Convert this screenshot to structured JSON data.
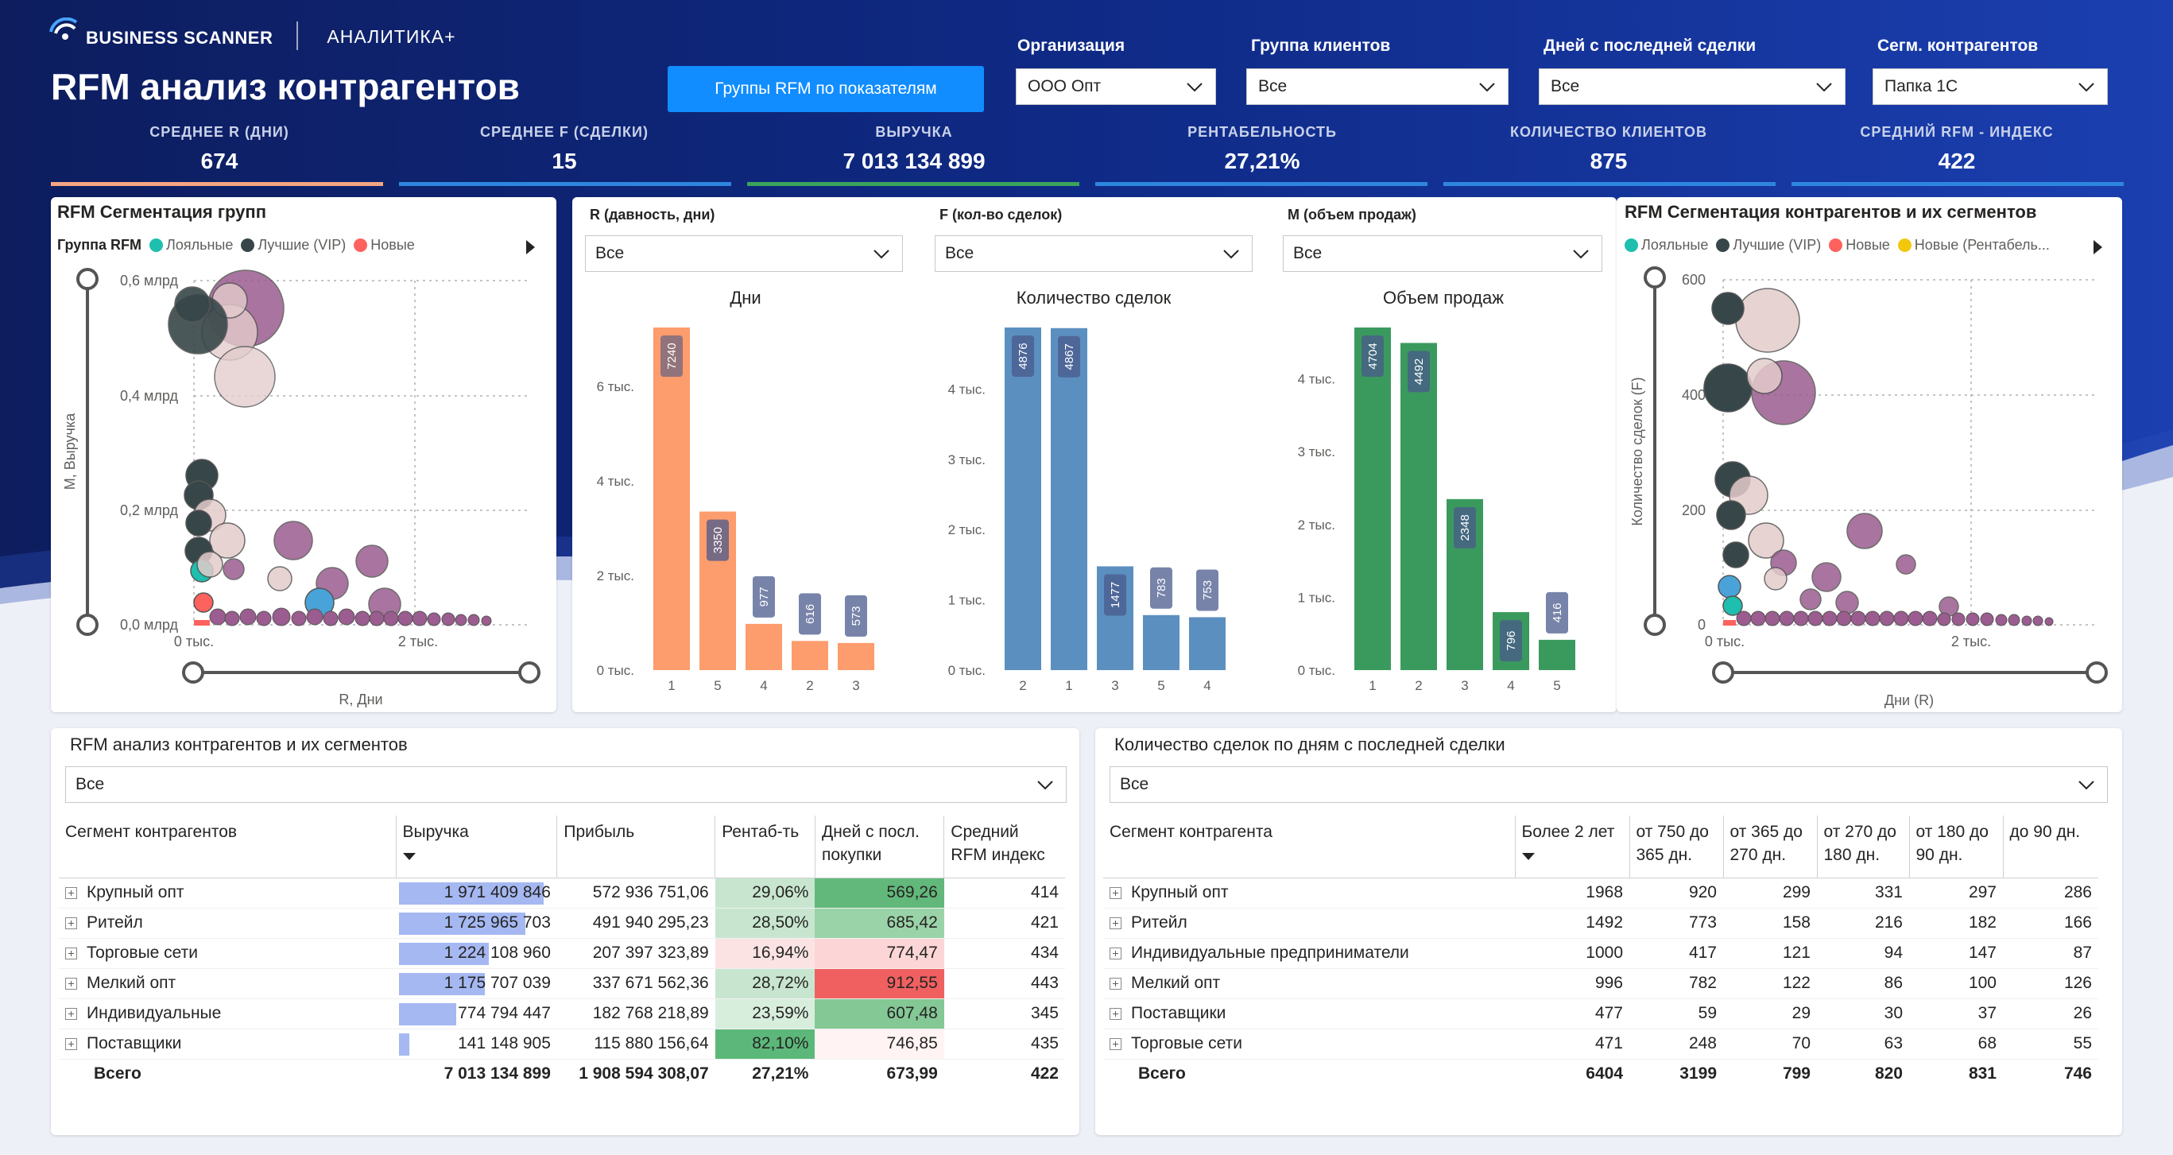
{
  "header": {
    "brand": "BUSINESS SCANNER",
    "product": "АНАЛИТИКА+",
    "title": "RFM анализ контрагентов",
    "button": "Группы RFM по показателям"
  },
  "filters": [
    {
      "label": "Организация",
      "value": "ООО Опт"
    },
    {
      "label": "Группа клиентов",
      "value": "Все"
    },
    {
      "label": "Дней с последней сделки",
      "value": "Все"
    },
    {
      "label": "Сегм. контрагентов",
      "value": "Папка 1С"
    }
  ],
  "kpis": [
    {
      "label": "СРЕДНЕЕ R (ДНИ)",
      "value": "674",
      "color": "#f4a582"
    },
    {
      "label": "СРЕДНЕЕ F (СДЕЛКИ)",
      "value": "15",
      "color": "#2e86de"
    },
    {
      "label": "ВЫРУЧКА",
      "value": "7 013 134 899",
      "color": "#3aa35c"
    },
    {
      "label": "РЕНТАБЕЛЬНОСТЬ",
      "value": "27,21%",
      "color": "#2e86de"
    },
    {
      "label": "КОЛИЧЕСТВО КЛИЕНТОВ",
      "value": "875",
      "color": "#2e86de"
    },
    {
      "label": "СРЕДНИЙ RFM - ИНДЕКС",
      "value": "422",
      "color": "#2e86de"
    }
  ],
  "scatter_left": {
    "title": "RFM Сегментация групп",
    "legend_title": "Группа RFM",
    "legend": [
      {
        "name": "Лояльные",
        "color": "#1ebfae"
      },
      {
        "name": "Лучшие (VIP)",
        "color": "#374649"
      },
      {
        "name": "Новые",
        "color": "#fd625e"
      }
    ],
    "y_title": "M, Выручка",
    "x_title": "R, Дни",
    "y_ticks": [
      "0,6 млрд",
      "0,4 млрд",
      "0,2 млрд",
      "0,0 млрд"
    ],
    "x_ticks": [
      "0 тыс.",
      "2 тыс."
    ]
  },
  "bar_panel": {
    "filters": [
      {
        "label": "R (давность, дни)",
        "value": "Все"
      },
      {
        "label": "F (кол-во сделок)",
        "value": "Все"
      },
      {
        "label": "M (объем продаж)",
        "value": "Все"
      }
    ]
  },
  "chart_data": [
    {
      "type": "bar",
      "title": "Дни",
      "categories": [
        "1",
        "5",
        "4",
        "2",
        "3"
      ],
      "values": [
        7240,
        3350,
        977,
        616,
        573
      ],
      "ylim": [
        0,
        7240
      ],
      "y_ticks": [
        "0 тыс.",
        "2 тыс.",
        "4 тыс.",
        "6 тыс."
      ],
      "color": "#fd9c6c"
    },
    {
      "type": "bar",
      "title": "Количество сделок",
      "categories": [
        "2",
        "1",
        "3",
        "5",
        "4"
      ],
      "values": [
        4876,
        4867,
        1477,
        783,
        753
      ],
      "ylim": [
        0,
        4876
      ],
      "y_ticks": [
        "0 тыс.",
        "1 тыс.",
        "2 тыс.",
        "3 тыс.",
        "4 тыс."
      ],
      "color": "#5b8fc0"
    },
    {
      "type": "bar",
      "title": "Объем продаж",
      "categories": [
        "1",
        "2",
        "3",
        "4",
        "5"
      ],
      "values": [
        4704,
        4492,
        2348,
        796,
        416
      ],
      "ylim": [
        0,
        4704
      ],
      "y_ticks": [
        "0 тыс.",
        "1 тыс.",
        "2 тыс.",
        "3 тыс.",
        "4 тыс."
      ],
      "color": "#3a9a5e"
    }
  ],
  "scatter_right": {
    "title": "RFM Сегментация контрагентов и их сегментов",
    "legend": [
      {
        "name": "Лояльные",
        "color": "#1ebfae"
      },
      {
        "name": "Лучшие (VIP)",
        "color": "#374649"
      },
      {
        "name": "Новые",
        "color": "#fd625e"
      },
      {
        "name": "Новые (Рентабель...",
        "color": "#f2c80f"
      }
    ],
    "y_title": "Количество сделок (F)",
    "x_title": "Дни (R)",
    "y_ticks": [
      "600",
      "400",
      "200",
      "0"
    ],
    "x_ticks": [
      "0 тыс.",
      "2 тыс."
    ]
  },
  "table_left": {
    "title": "RFM анализ контрагентов и их сегментов",
    "filter": "Все",
    "headers": [
      "Сегмент контрагентов",
      "Выручка",
      "Прибыль",
      "Рентаб-ть",
      "Дней с посл. покупки",
      "Средний RFM индекс"
    ],
    "rows": [
      {
        "name": "Крупный опт",
        "revenue": "1 971 409 846",
        "profit": "572 936 751,06",
        "rent": "29,06%",
        "days": "569,26",
        "rfm": "414"
      },
      {
        "name": "Ритейл",
        "revenue": "1 725 965 703",
        "profit": "491 940 295,23",
        "rent": "28,50%",
        "days": "685,42",
        "rfm": "421"
      },
      {
        "name": "Торговые сети",
        "revenue": "1 224 108 960",
        "profit": "207 397 323,89",
        "rent": "16,94%",
        "days": "774,47",
        "rfm": "434"
      },
      {
        "name": "Мелкий опт",
        "revenue": "1 175 707 039",
        "profit": "337 671 562,36",
        "rent": "28,72%",
        "days": "912,55",
        "rfm": "443"
      },
      {
        "name": "Индивидуальные",
        "revenue": "774 794 447",
        "profit": "182 768 218,89",
        "rent": "23,59%",
        "days": "607,48",
        "rfm": "345"
      },
      {
        "name": "Поставщики",
        "revenue": "141 148 905",
        "profit": "115 880 156,64",
        "rent": "82,10%",
        "days": "746,85",
        "rfm": "435"
      }
    ],
    "revenue_share": [
      1.0,
      0.875,
      0.621,
      0.596,
      0.393,
      0.072
    ],
    "total": {
      "name": "Всего",
      "revenue": "7 013 134 899",
      "profit": "1 908 594 308,07",
      "rent": "27,21%",
      "days": "673,99",
      "rfm": "422"
    }
  },
  "table_right": {
    "title": "Количество сделок по дням с последней сделки",
    "filter": "Все",
    "headers": [
      "Сегмент контрагента",
      "Более 2 лет",
      "от 750 до 365 дн.",
      "от 365 до 270 дн.",
      "от 270 до 180 дн.",
      "от 180 до 90 дн.",
      "до 90 дн."
    ],
    "rows": [
      {
        "name": "Крупный опт",
        "v": [
          "1968",
          "920",
          "299",
          "331",
          "297",
          "286"
        ]
      },
      {
        "name": "Ритейл",
        "v": [
          "1492",
          "773",
          "158",
          "216",
          "182",
          "166"
        ]
      },
      {
        "name": "Индивидуальные предприниматели",
        "v": [
          "1000",
          "417",
          "121",
          "94",
          "147",
          "87"
        ]
      },
      {
        "name": "Мелкий опт",
        "v": [
          "996",
          "782",
          "122",
          "86",
          "100",
          "126"
        ]
      },
      {
        "name": "Поставщики",
        "v": [
          "477",
          "59",
          "29",
          "30",
          "37",
          "26"
        ]
      },
      {
        "name": "Торговые сети",
        "v": [
          "471",
          "248",
          "70",
          "63",
          "68",
          "55"
        ]
      }
    ],
    "total": {
      "name": "Всего",
      "v": [
        "6404",
        "3199",
        "799",
        "820",
        "831",
        "746"
      ]
    }
  }
}
